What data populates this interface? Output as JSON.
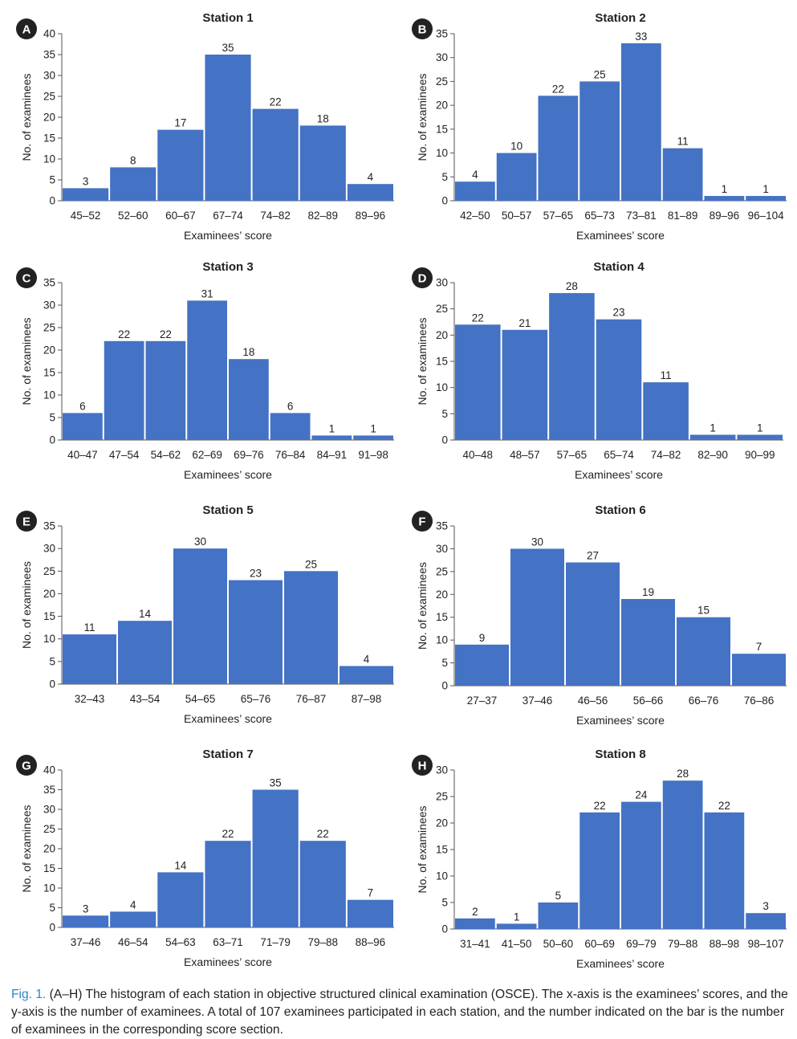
{
  "colors": {
    "bar": "#4472c4",
    "axis": "#555555",
    "badge": "#222222",
    "caption_label": "#2e86c1"
  },
  "chart_data": [
    {
      "type": "bar",
      "label": "A",
      "title": "Station 1",
      "xlabel": "Examinees’ score",
      "ylabel": "No. of examinees",
      "ylim": [
        0,
        40
      ],
      "yticks": [
        0,
        5,
        10,
        15,
        20,
        25,
        30,
        35,
        40
      ],
      "grid": false,
      "categories": [
        "45–52",
        "52–60",
        "60–67",
        "67–74",
        "74–82",
        "82–89",
        "89–96"
      ],
      "values": [
        3,
        8,
        17,
        35,
        22,
        18,
        4
      ]
    },
    {
      "type": "bar",
      "label": "B",
      "title": "Station 2",
      "xlabel": "Examinees’ score",
      "ylabel": "No. of examinees",
      "ylim": [
        0,
        35
      ],
      "yticks": [
        0,
        5,
        10,
        15,
        20,
        25,
        30,
        35
      ],
      "grid": false,
      "categories": [
        "42–50",
        "50–57",
        "57–65",
        "65–73",
        "73–81",
        "81–89",
        "89–96",
        "96–104"
      ],
      "values": [
        4,
        10,
        22,
        25,
        33,
        11,
        1,
        1
      ]
    },
    {
      "type": "bar",
      "label": "C",
      "title": "Station 3",
      "xlabel": "Examinees’ score",
      "ylabel": "No. of examinees",
      "ylim": [
        0,
        35
      ],
      "yticks": [
        0,
        5,
        10,
        15,
        20,
        25,
        30,
        35
      ],
      "grid": false,
      "categories": [
        "40–47",
        "47–54",
        "54–62",
        "62–69",
        "69–76",
        "76–84",
        "84–91",
        "91–98"
      ],
      "values": [
        6,
        22,
        22,
        31,
        18,
        6,
        1,
        1
      ]
    },
    {
      "type": "bar",
      "label": "D",
      "title": "Station 4",
      "xlabel": "Examinees’ score",
      "ylabel": "No. of examinees",
      "ylim": [
        0,
        30
      ],
      "yticks": [
        0,
        5,
        10,
        15,
        20,
        25,
        30
      ],
      "grid": false,
      "categories": [
        "40–48",
        "48–57",
        "57–65",
        "65–74",
        "74–82",
        "82–90",
        "90–99"
      ],
      "values": [
        22,
        21,
        28,
        23,
        11,
        1,
        1
      ]
    },
    {
      "type": "bar",
      "label": "E",
      "title": "Station 5",
      "xlabel": "Examinees’ score",
      "ylabel": "No. of examinees",
      "ylim": [
        0,
        35
      ],
      "yticks": [
        0,
        5,
        10,
        15,
        20,
        25,
        30,
        35
      ],
      "grid": false,
      "categories": [
        "32–43",
        "43–54",
        "54–65",
        "65–76",
        "76–87",
        "87–98"
      ],
      "values": [
        11,
        14,
        30,
        23,
        25,
        4
      ]
    },
    {
      "type": "bar",
      "label": "F",
      "title": "Station 6",
      "xlabel": "Examinees’ score",
      "ylabel": "No. of examinees",
      "ylim": [
        0,
        35
      ],
      "yticks": [
        0,
        5,
        10,
        15,
        20,
        25,
        30,
        35
      ],
      "grid": false,
      "categories": [
        "27–37",
        "37–46",
        "46–56",
        "56–66",
        "66–76",
        "76–86"
      ],
      "values": [
        9,
        30,
        27,
        19,
        15,
        7
      ]
    },
    {
      "type": "bar",
      "label": "G",
      "title": "Station 7",
      "xlabel": "Examinees’ score",
      "ylabel": "No. of examinees",
      "ylim": [
        0,
        40
      ],
      "yticks": [
        0,
        5,
        10,
        15,
        20,
        25,
        30,
        35,
        40
      ],
      "grid": false,
      "categories": [
        "37–46",
        "46–54",
        "54–63",
        "63–71",
        "71–79",
        "79–88",
        "88–96"
      ],
      "values": [
        3,
        4,
        14,
        22,
        35,
        22,
        7
      ]
    },
    {
      "type": "bar",
      "label": "H",
      "title": "Station 8",
      "xlabel": "Examinees’ score",
      "ylabel": "No. of examinees",
      "ylim": [
        0,
        30
      ],
      "yticks": [
        0,
        5,
        10,
        15,
        20,
        25,
        30
      ],
      "grid": false,
      "categories": [
        "31–41",
        "41–50",
        "50–60",
        "60–69",
        "69–79",
        "79–88",
        "88–98",
        "98–107"
      ],
      "values": [
        2,
        1,
        5,
        22,
        24,
        28,
        22,
        3
      ]
    }
  ],
  "caption": {
    "label": "Fig. 1.",
    "text": " (A–H) The histogram of each station in objective structured clinical examination (OSCE). The x-axis is the examinees’ scores, and the y-axis is the number of examinees. A total of 107 examinees participated in each station, and the number indicated on the bar is the number of examinees in the corresponding score section."
  }
}
